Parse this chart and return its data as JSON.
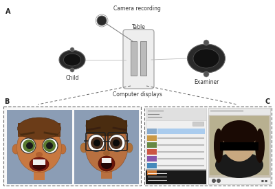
{
  "bg_color": "#ffffff",
  "label_A": "A",
  "label_B": "B",
  "label_C": "C",
  "text_camera": "Camera recording",
  "text_table": "Table",
  "text_child": "Child",
  "text_examiner": "Examiner",
  "text_computer": "Computer displays",
  "fig_w": 4.0,
  "fig_h": 2.75,
  "dpi": 100
}
